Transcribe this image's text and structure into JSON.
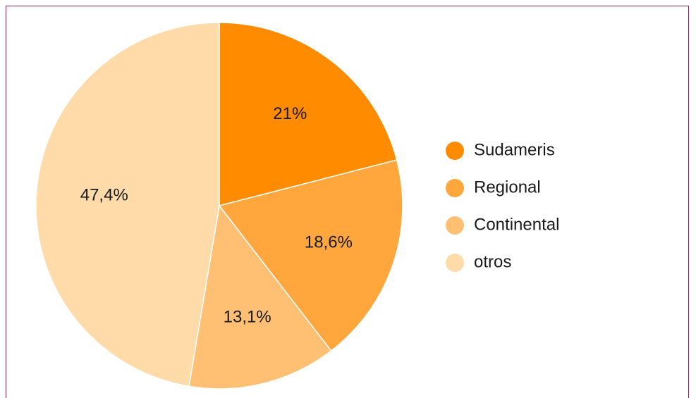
{
  "chart_data": {
    "type": "pie",
    "categories": [
      "Sudameris",
      "Regional",
      "Continental",
      "otros"
    ],
    "values": [
      21,
      18.6,
      13.1,
      47.4
    ],
    "value_labels": [
      "21%",
      "18,6%",
      "13,1%",
      "47,4%"
    ],
    "colors": [
      "#ff8c00",
      "#ffa63c",
      "#ffc073",
      "#ffdba9"
    ],
    "legend": "right"
  }
}
